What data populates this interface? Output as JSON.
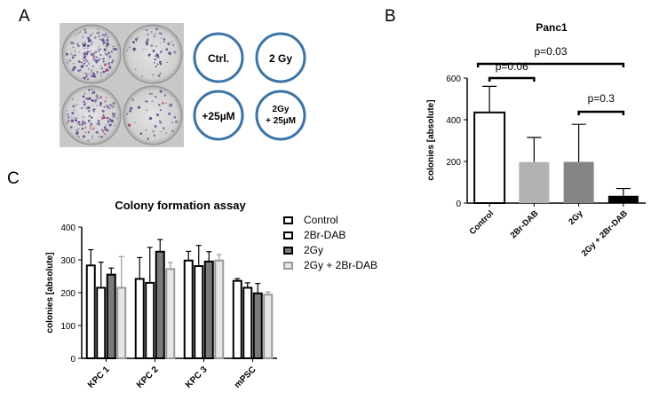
{
  "panel_letters": {
    "a": "A",
    "b": "B",
    "c": "C"
  },
  "photo": {
    "condition_labels": [
      "Ctrl.",
      "2 Gy",
      "+25µM",
      "2Gy",
      "+ 25µM"
    ],
    "ring_color": "#3b74a8"
  },
  "chart_data": [
    {
      "type": "bar",
      "title": "Panc1",
      "ylabel": "colonies [absolute]",
      "xlabel": "",
      "categories": [
        "Control",
        "2Br-DAB",
        "2Gy",
        "2Gy + 2Br-DAB"
      ],
      "values": [
        435,
        197,
        198,
        35
      ],
      "errors": [
        125,
        118,
        180,
        35
      ],
      "ylim": [
        0,
        600
      ],
      "yticks": [
        0,
        200,
        400,
        600
      ],
      "bar_colors": [
        "#ffffff",
        "#b2b2b2",
        "#858585",
        "#000000"
      ],
      "significance": [
        {
          "from": 0,
          "to": 1,
          "label": "p=0.06"
        },
        {
          "from": 0,
          "to": 3,
          "label": "p=0.03"
        },
        {
          "from": 2,
          "to": 3,
          "label": "p=0.3"
        }
      ],
      "grid": false
    },
    {
      "type": "bar",
      "title": "Colony formation assay",
      "ylabel": "colonies [absolute]",
      "xlabel": "",
      "categories": [
        "KPC 1",
        "KPC 2",
        "KPC 3",
        "mPSC"
      ],
      "series": [
        {
          "name": "Control",
          "values": [
            283,
            242,
            298,
            236
          ],
          "errors": [
            48,
            65,
            28,
            7
          ]
        },
        {
          "name": "2Br-DAB",
          "values": [
            215,
            230,
            281,
            215
          ],
          "errors": [
            78,
            108,
            63,
            15
          ]
        },
        {
          "name": "2Gy",
          "values": [
            255,
            325,
            295,
            198
          ],
          "errors": [
            20,
            37,
            30,
            30
          ]
        },
        {
          "name": "2Gy + 2Br-DAB",
          "values": [
            215,
            272,
            298,
            194
          ],
          "errors": [
            95,
            20,
            18,
            8
          ]
        }
      ],
      "series_styles": [
        {
          "fill": "#ffffff",
          "stroke": "#000000"
        },
        {
          "fill": "#ffffff",
          "stroke": "#000000"
        },
        {
          "fill": "#7a7a7a",
          "stroke": "#000000"
        },
        {
          "fill": "#e6e6e6",
          "stroke": "#9a9a9a"
        }
      ],
      "ylim": [
        0,
        400
      ],
      "yticks": [
        0,
        100,
        200,
        300,
        400
      ],
      "legend": "right",
      "grid": false
    }
  ]
}
